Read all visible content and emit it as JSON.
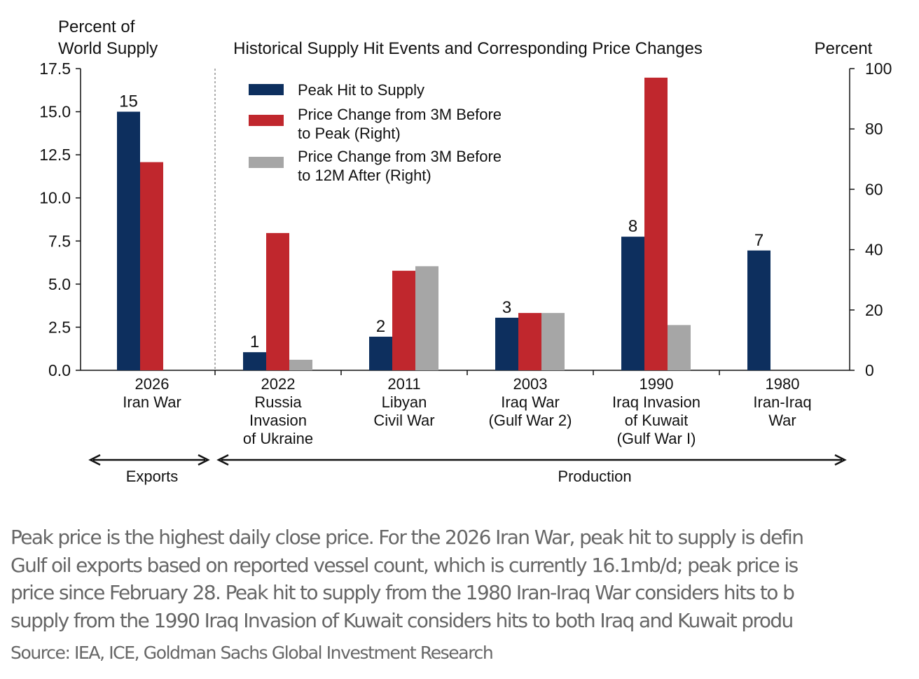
{
  "chart_data": {
    "type": "bar",
    "title": "Historical Supply Hit Events and Corresponding Price Changes",
    "ylabel_left": "Percent of World Supply",
    "ylabel_right": "Percent",
    "ylim_left": [
      0,
      17.5
    ],
    "ylim_right": [
      0,
      100
    ],
    "left_ticks": [
      "0.0",
      "2.5",
      "5.0",
      "7.5",
      "10.0",
      "12.5",
      "15.0",
      "17.5"
    ],
    "right_ticks": [
      "0",
      "20",
      "40",
      "60",
      "80",
      "100"
    ],
    "categories": [
      [
        "2026",
        "Iran War"
      ],
      [
        "2022",
        "Russia",
        "Invasion",
        "of Ukraine"
      ],
      [
        "2011",
        "Libyan",
        "Civil War"
      ],
      [
        "2003",
        "Iraq War",
        "(Gulf War 2)"
      ],
      [
        "1990",
        "Iraq Invasion",
        "of Kuwait",
        "(Gulf War I)"
      ],
      [
        "1980",
        "Iran-Iraq",
        "War"
      ]
    ],
    "series": [
      {
        "name": "Peak Hit to Supply",
        "axis": "left",
        "color": "#0d2f5e",
        "values": [
          15,
          1.05,
          1.95,
          3.05,
          7.75,
          6.95
        ],
        "labels": [
          "15",
          "1",
          "2",
          "3",
          "8",
          "7"
        ]
      },
      {
        "name": "Price Change from 3M Before to Peak (Right)",
        "name_lines": [
          "Price Change from 3M Before",
          "to Peak (Right)"
        ],
        "axis": "right",
        "color": "#c0272d",
        "values": [
          69,
          45.5,
          33,
          19,
          97,
          null
        ]
      },
      {
        "name": "Price Change from 3M Before to 12M After (Right)",
        "name_lines": [
          "Price Change from 3M Before",
          "to 12M After (Right)"
        ],
        "axis": "right",
        "color": "#a6a6a6",
        "values": [
          null,
          3.5,
          34.5,
          19,
          15,
          null
        ]
      }
    ],
    "groups": [
      {
        "label": "Exports",
        "span": [
          0,
          0
        ]
      },
      {
        "label": "Production",
        "span": [
          1,
          5
        ]
      }
    ],
    "legend": "top-left",
    "grid": false
  },
  "notes": [
    "Peak price is the highest daily close price. For the 2026 Iran War, peak hit to supply is defin",
    "Gulf oil exports based on reported vessel count, which is currently 16.1mb/d; peak price is",
    "price since February 28. Peak hit to supply from the 1980 Iran-Iraq War considers hits to b",
    "supply from the 1990 Iraq Invasion of Kuwait considers hits to both Iraq and Kuwait produ"
  ],
  "source": "Source: IEA, ICE, Goldman Sachs Global Investment Research"
}
